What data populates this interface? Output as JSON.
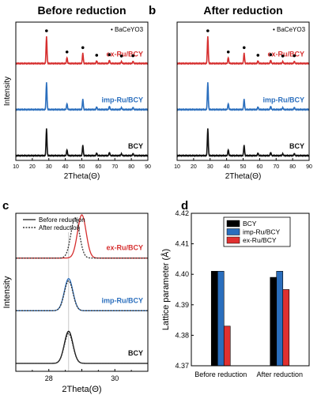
{
  "chart_data": [
    {
      "panel": "a",
      "type": "line",
      "title": "Before reduction",
      "xlabel": "2Theta(Θ)",
      "ylabel": "Intensity",
      "xlim": [
        10,
        90
      ],
      "xticks": [
        "10",
        "20",
        "30",
        "40",
        "50",
        "60",
        "70",
        "80",
        "90"
      ],
      "legend": "• BaCeYO3",
      "peaks": [
        28.6,
        41.0,
        50.6,
        59.0,
        66.7,
        74.0,
        81.0
      ],
      "series": [
        {
          "name": "ex-Ru/BCY",
          "color": "#d62f2f",
          "heights": [
            1.0,
            0.22,
            0.38,
            0.1,
            0.12,
            0.07,
            0.08
          ]
        },
        {
          "name": "imp-Ru/BCY",
          "color": "#2a6ebd",
          "heights": [
            1.0,
            0.22,
            0.38,
            0.1,
            0.12,
            0.07,
            0.08
          ]
        },
        {
          "name": "BCY",
          "color": "#111111",
          "heights": [
            1.0,
            0.22,
            0.38,
            0.1,
            0.12,
            0.07,
            0.08
          ]
        }
      ]
    },
    {
      "panel": "b",
      "type": "line",
      "title": "After reduction",
      "xlabel": "2Theta(Θ)",
      "ylabel": "",
      "xlim": [
        10,
        90
      ],
      "xticks": [
        "10",
        "20",
        "30",
        "40",
        "50",
        "60",
        "70",
        "80",
        "90"
      ],
      "legend": "• BaCeYO3",
      "peaks": [
        28.6,
        41.0,
        50.6,
        59.0,
        66.7,
        74.0,
        81.0
      ],
      "series": [
        {
          "name": "ex-Ru/BCY",
          "color": "#d62f2f",
          "heights": [
            1.0,
            0.22,
            0.38,
            0.1,
            0.12,
            0.07,
            0.08
          ]
        },
        {
          "name": "imp-Ru/BCY",
          "color": "#2a6ebd",
          "heights": [
            1.0,
            0.22,
            0.38,
            0.1,
            0.12,
            0.07,
            0.08
          ]
        },
        {
          "name": "BCY",
          "color": "#111111",
          "heights": [
            1.0,
            0.22,
            0.38,
            0.1,
            0.12,
            0.07,
            0.08
          ]
        }
      ]
    },
    {
      "panel": "c",
      "type": "line",
      "title": "",
      "xlabel": "2Theta(Θ)",
      "ylabel": "Intensity",
      "xlim": [
        27,
        31
      ],
      "xticks": [
        "28",
        "30"
      ],
      "reference_line": 28.6,
      "legend_items": [
        {
          "label": "Before reduction",
          "style": "solid"
        },
        {
          "label": "After reduction",
          "style": "dotted"
        }
      ],
      "series": [
        {
          "name": "ex-Ru/BCY",
          "color": "#d62f2f",
          "before_center": 29.0,
          "after_center": 28.8
        },
        {
          "name": "imp-Ru/BCY",
          "color": "#2a6ebd",
          "before_center": 28.6,
          "after_center": 28.6
        },
        {
          "name": "BCY",
          "color": "#111111",
          "before_center": 28.6,
          "after_center": 28.6
        }
      ]
    },
    {
      "panel": "d",
      "type": "bar",
      "title": "",
      "xlabel": "",
      "ylabel": "Lattice parameter (Å)",
      "ylim": [
        4.37,
        4.42
      ],
      "yticks": [
        "4.37",
        "4.38",
        "4.39",
        "4.40",
        "4.41",
        "4.42"
      ],
      "categories": [
        "Before reduction",
        "After reduction"
      ],
      "series": [
        {
          "name": "BCY",
          "color": "#000000",
          "values": [
            4.401,
            4.399
          ]
        },
        {
          "name": "imp-Ru/BCY",
          "color": "#2a6ebd",
          "values": [
            4.401,
            4.401
          ]
        },
        {
          "name": "ex-Ru/BCY",
          "color": "#e03030",
          "values": [
            4.383,
            4.395
          ]
        }
      ]
    }
  ]
}
